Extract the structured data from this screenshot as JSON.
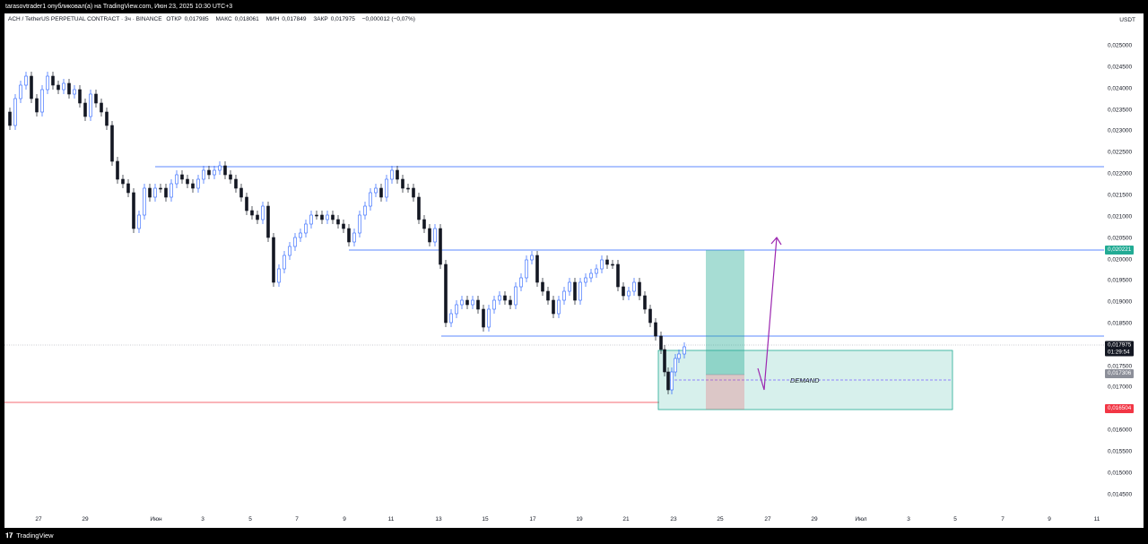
{
  "header": {
    "publisher_line": "tarasovtrader1 опубликовал(а) на TradingView.com, Июн 23, 2025 10:30 UTC+3"
  },
  "legend": {
    "symbol": "ACH / TetherUS PERPETUAL CONTRACT · 3ч · BINANCE",
    "open_label": "ОТКР",
    "open": "0,017985",
    "high_label": "МАКС",
    "high": "0,018061",
    "low_label": "МИН",
    "low": "0,017849",
    "close_label": "ЗАКР",
    "close": "0,017975",
    "change": "−0,000012 (−0,07%)"
  },
  "currency": "USDT",
  "price_ticks": [
    "0,025000",
    "0,024500",
    "0,024000",
    "0,023500",
    "0,023000",
    "0,022500",
    "0,022000",
    "0,021500",
    "0,021000",
    "0,020500",
    "0,020000",
    "0,019500",
    "0,019000",
    "0,018500",
    "0,017500",
    "0,017000",
    "0,016000",
    "0,015500",
    "0,015000",
    "0,014500"
  ],
  "price_labels": {
    "resistance": "0,020221",
    "current": "0,017975",
    "countdown": "01:29:54",
    "entry": "0,017306",
    "stop": "0,016504"
  },
  "time_ticks": [
    "27",
    "29",
    "Июн",
    "3",
    "5",
    "7",
    "9",
    "11",
    "13",
    "15",
    "17",
    "19",
    "21",
    "23",
    "25",
    "27",
    "29",
    "Июл",
    "3",
    "5",
    "7",
    "9",
    "11"
  ],
  "annotation": {
    "zone_label": "DEMAND"
  },
  "footer": {
    "brand": "TradingView"
  },
  "colors": {
    "up_candle": "#2962ff",
    "down_candle": "#131722",
    "level_line": "#2962ff",
    "stop_line": "#f23645",
    "zone_fill": "#22ab94",
    "arrow": "#9c27b0"
  }
}
